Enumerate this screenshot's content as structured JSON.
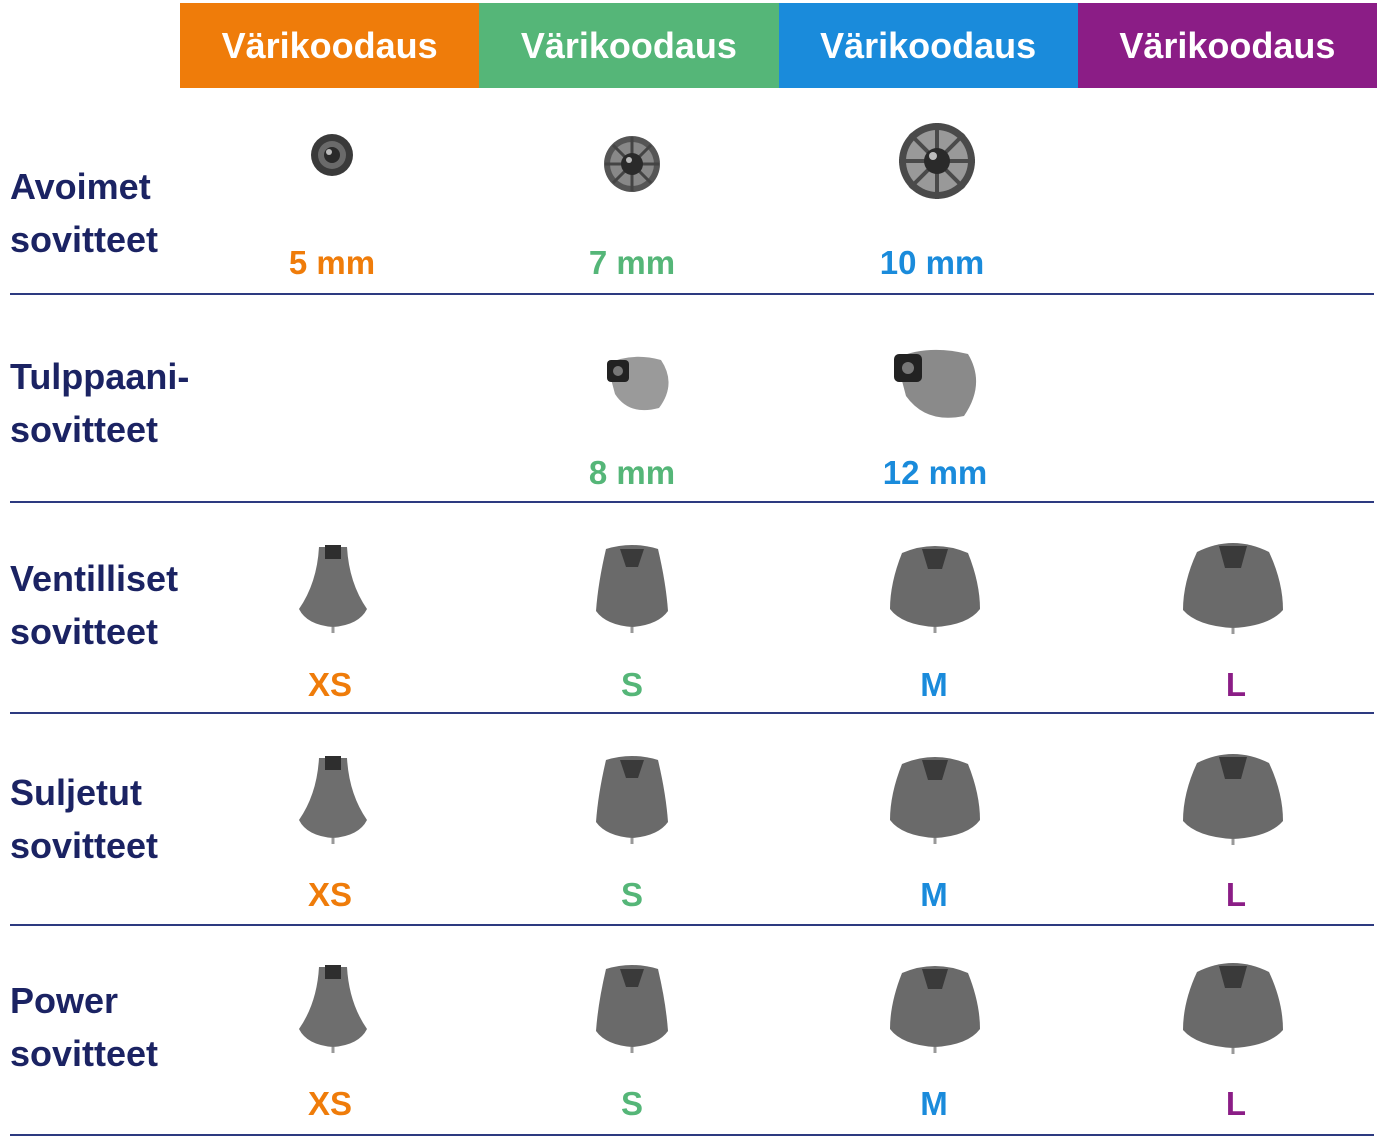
{
  "header": {
    "columns": [
      {
        "label": "Värikoodaus",
        "color": "#ef7c0a"
      },
      {
        "label": "Värikoodaus",
        "color": "#55b678"
      },
      {
        "label": "Värikoodaus",
        "color": "#1a8bdb"
      },
      {
        "label": "Värikoodaus",
        "color": "#8b1d86"
      }
    ]
  },
  "colors": {
    "orange": "#ef7c0a",
    "green": "#55b678",
    "blue": "#1a8bdb",
    "purple": "#8b1d86",
    "label": "#1b2363"
  },
  "rows": [
    {
      "label_line1": "Avoimet",
      "label_line2": "sovitteet",
      "sizes": [
        "5 mm",
        "7 mm",
        "10 mm",
        ""
      ],
      "icon": "open-dome-icon"
    },
    {
      "label_line1": "Tulppaani-",
      "label_line2": "sovitteet",
      "sizes": [
        "",
        "8 mm",
        "12 mm",
        ""
      ],
      "icon": "tulip-dome-icon"
    },
    {
      "label_line1": "Ventilliset",
      "label_line2": "sovitteet",
      "sizes": [
        "XS",
        "S",
        "M",
        "L"
      ],
      "icon": "vented-dome-icon"
    },
    {
      "label_line1": "Suljetut",
      "label_line2": "sovitteet",
      "sizes": [
        "XS",
        "S",
        "M",
        "L"
      ],
      "icon": "closed-dome-icon"
    },
    {
      "label_line1": "Power",
      "label_line2": "sovitteet",
      "sizes": [
        "XS",
        "S",
        "M",
        "L"
      ],
      "icon": "power-dome-icon"
    }
  ]
}
